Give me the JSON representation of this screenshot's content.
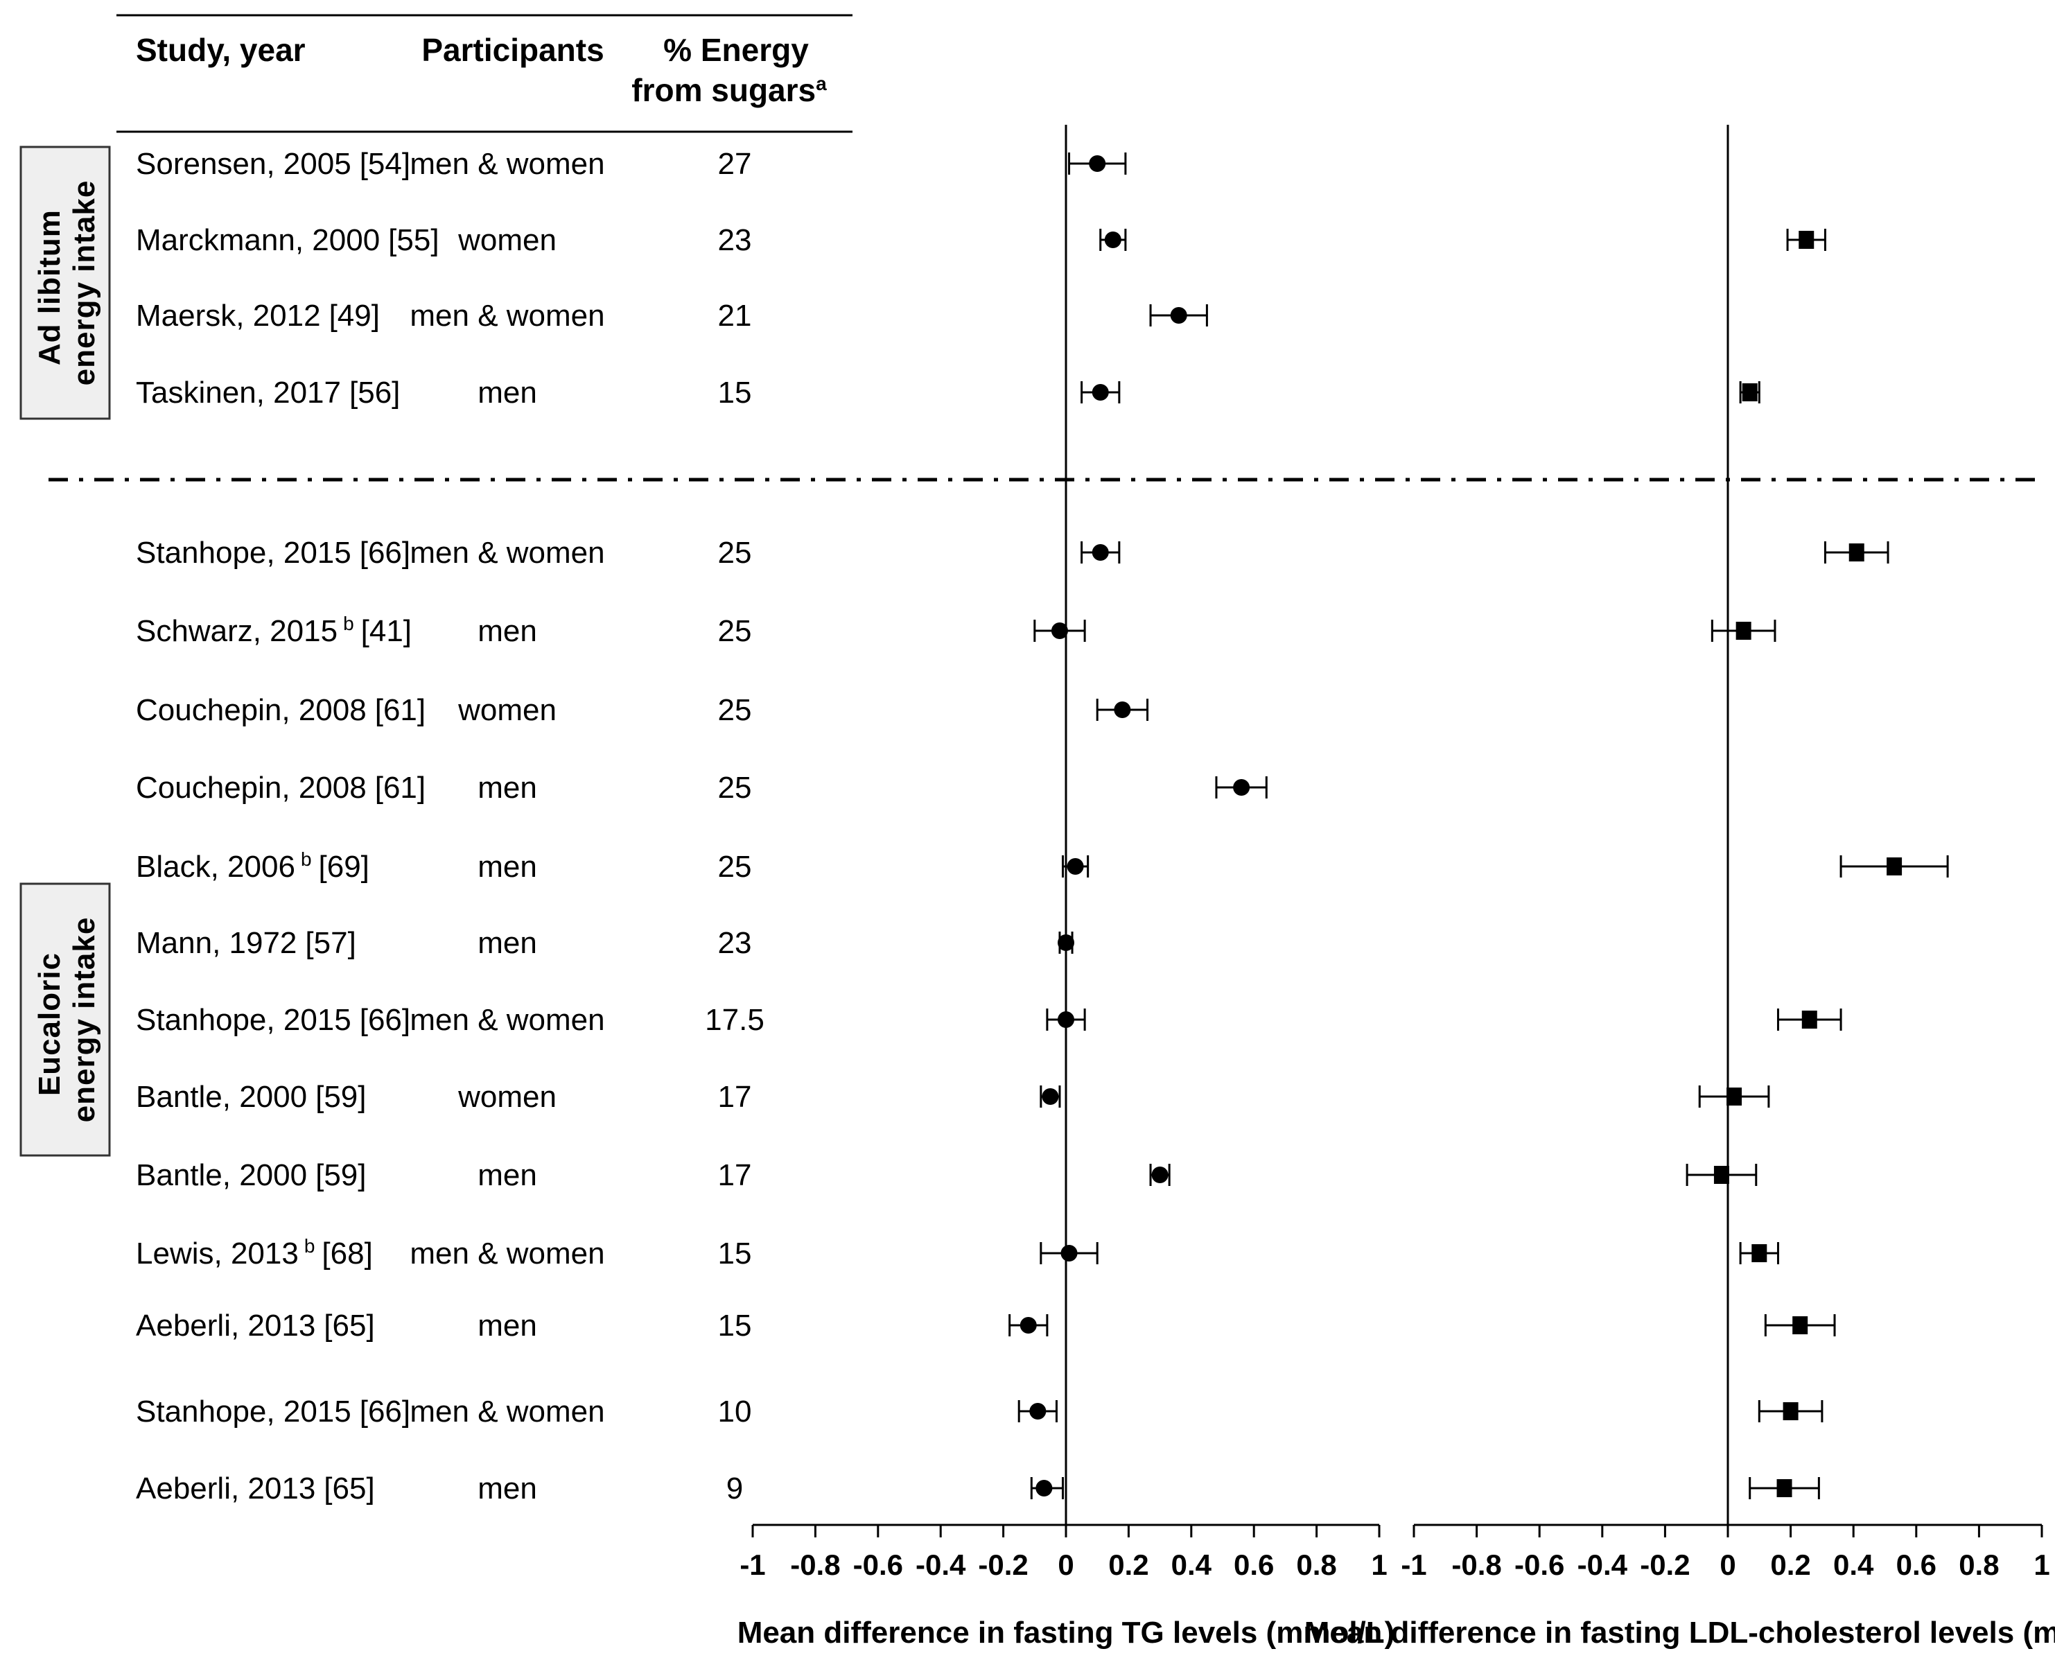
{
  "chart_data": {
    "type": "forest",
    "headers": {
      "study": "Study, year",
      "participants": "Participants",
      "energy_line1": "% Energy",
      "energy_line2": "from sugars",
      "energy_sup": "a"
    },
    "groups": [
      {
        "label_line1": "Ad libitum",
        "label_line2": "energy intake",
        "rows": [
          0,
          1,
          2,
          3
        ]
      },
      {
        "label_line1": "Eucaloric",
        "label_line2": "energy intake",
        "rows": [
          4,
          5,
          6,
          7,
          8,
          9,
          10,
          11,
          12,
          13,
          14,
          15,
          16
        ]
      }
    ],
    "rows": [
      {
        "study": "Sorensen, 2005",
        "sup": "",
        "ref": "[54]",
        "participants": "men & women",
        "energy": "27",
        "tg": {
          "est": 0.1,
          "lo": 0.01,
          "hi": 0.19
        },
        "ldl": null
      },
      {
        "study": "Marckmann, 2000",
        "sup": "",
        "ref": "[55]",
        "participants": "women",
        "energy": "23",
        "tg": {
          "est": 0.15,
          "lo": 0.11,
          "hi": 0.19
        },
        "ldl": {
          "est": 0.25,
          "lo": 0.19,
          "hi": 0.31
        }
      },
      {
        "study": "Maersk, 2012",
        "sup": "",
        "ref": "[49]",
        "participants": "men & women",
        "energy": "21",
        "tg": {
          "est": 0.36,
          "lo": 0.27,
          "hi": 0.45
        },
        "ldl": null
      },
      {
        "study": "Taskinen, 2017",
        "sup": "",
        "ref": "[56]",
        "participants": "men",
        "energy": "15",
        "tg": {
          "est": 0.11,
          "lo": 0.05,
          "hi": 0.17
        },
        "ldl": {
          "est": 0.07,
          "lo": 0.04,
          "hi": 0.1
        }
      },
      {
        "study": "Stanhope, 2015",
        "sup": "",
        "ref": "[66]",
        "participants": "men & women",
        "energy": "25",
        "tg": {
          "est": 0.11,
          "lo": 0.05,
          "hi": 0.17
        },
        "ldl": {
          "est": 0.41,
          "lo": 0.31,
          "hi": 0.51
        }
      },
      {
        "study": "Schwarz, 2015",
        "sup": "b",
        "ref": "[41]",
        "participants": "men",
        "energy": "25",
        "tg": {
          "est": -0.02,
          "lo": -0.1,
          "hi": 0.06
        },
        "ldl": {
          "est": 0.05,
          "lo": -0.05,
          "hi": 0.15
        }
      },
      {
        "study": "Couchepin, 2008",
        "sup": "",
        "ref": "[61]",
        "participants": "women",
        "energy": "25",
        "tg": {
          "est": 0.18,
          "lo": 0.1,
          "hi": 0.26
        },
        "ldl": null
      },
      {
        "study": "Couchepin, 2008",
        "sup": "",
        "ref": "[61]",
        "participants": "men",
        "energy": "25",
        "tg": {
          "est": 0.56,
          "lo": 0.48,
          "hi": 0.64
        },
        "ldl": null
      },
      {
        "study": "Black, 2006",
        "sup": "b",
        "ref": "[69]",
        "participants": "men",
        "energy": "25",
        "tg": {
          "est": 0.03,
          "lo": -0.01,
          "hi": 0.07
        },
        "ldl": {
          "est": 0.53,
          "lo": 0.36,
          "hi": 0.7
        }
      },
      {
        "study": "Mann, 1972",
        "sup": "",
        "ref": "[57]",
        "participants": "men",
        "energy": "23",
        "tg": {
          "est": 0.0,
          "lo": -0.02,
          "hi": 0.02
        },
        "ldl": null
      },
      {
        "study": "Stanhope, 2015",
        "sup": "",
        "ref": "[66]",
        "participants": "men & women",
        "energy": "17.5",
        "tg": {
          "est": 0.0,
          "lo": -0.06,
          "hi": 0.06
        },
        "ldl": {
          "est": 0.26,
          "lo": 0.16,
          "hi": 0.36
        }
      },
      {
        "study": "Bantle, 2000",
        "sup": "",
        "ref": "[59]",
        "participants": "women",
        "energy": "17",
        "tg": {
          "est": -0.05,
          "lo": -0.08,
          "hi": -0.02
        },
        "ldl": {
          "est": 0.02,
          "lo": -0.09,
          "hi": 0.13
        }
      },
      {
        "study": "Bantle, 2000",
        "sup": "",
        "ref": "[59]",
        "participants": "men",
        "energy": "17",
        "tg": {
          "est": 0.3,
          "lo": 0.27,
          "hi": 0.33
        },
        "ldl": {
          "est": -0.02,
          "lo": -0.13,
          "hi": 0.09
        }
      },
      {
        "study": "Lewis, 2013",
        "sup": "b",
        "ref": "[68]",
        "participants": "men & women",
        "energy": "15",
        "tg": {
          "est": 0.01,
          "lo": -0.08,
          "hi": 0.1
        },
        "ldl": {
          "est": 0.1,
          "lo": 0.04,
          "hi": 0.16
        }
      },
      {
        "study": "Aeberli, 2013",
        "sup": "",
        "ref": "[65]",
        "participants": "men",
        "energy": "15",
        "tg": {
          "est": -0.12,
          "lo": -0.18,
          "hi": -0.06
        },
        "ldl": {
          "est": 0.23,
          "lo": 0.12,
          "hi": 0.34
        }
      },
      {
        "study": "Stanhope, 2015",
        "sup": "",
        "ref": "[66]",
        "participants": "men & women",
        "energy": "10",
        "tg": {
          "est": -0.09,
          "lo": -0.15,
          "hi": -0.03
        },
        "ldl": {
          "est": 0.2,
          "lo": 0.1,
          "hi": 0.3
        }
      },
      {
        "study": "Aeberli, 2013",
        "sup": "",
        "ref": "[65]",
        "participants": "men",
        "energy": "9",
        "tg": {
          "est": -0.07,
          "lo": -0.11,
          "hi": -0.01
        },
        "ldl": {
          "est": 0.18,
          "lo": 0.07,
          "hi": 0.29
        }
      }
    ],
    "axes": [
      {
        "id": "tg",
        "xlabel": "Mean difference in fasting TG levels (mmol/L)",
        "xlim": [
          -1,
          1
        ],
        "marker": "circle",
        "ticks": [
          "-1",
          "-0.8",
          "-0.6",
          "-0.4",
          "-0.2",
          "0",
          "0.2",
          "0.4",
          "0.6",
          "0.8",
          "1"
        ]
      },
      {
        "id": "ldl",
        "xlabel": "Mean difference in fasting LDL-cholesterol levels (mmol/L)",
        "xlim": [
          -1,
          1
        ],
        "marker": "square",
        "ticks": [
          "-1",
          "-0.8",
          "-0.6",
          "-0.4",
          "-0.2",
          "0",
          "0.2",
          "0.4",
          "0.6",
          "0.8",
          "1"
        ]
      }
    ]
  }
}
